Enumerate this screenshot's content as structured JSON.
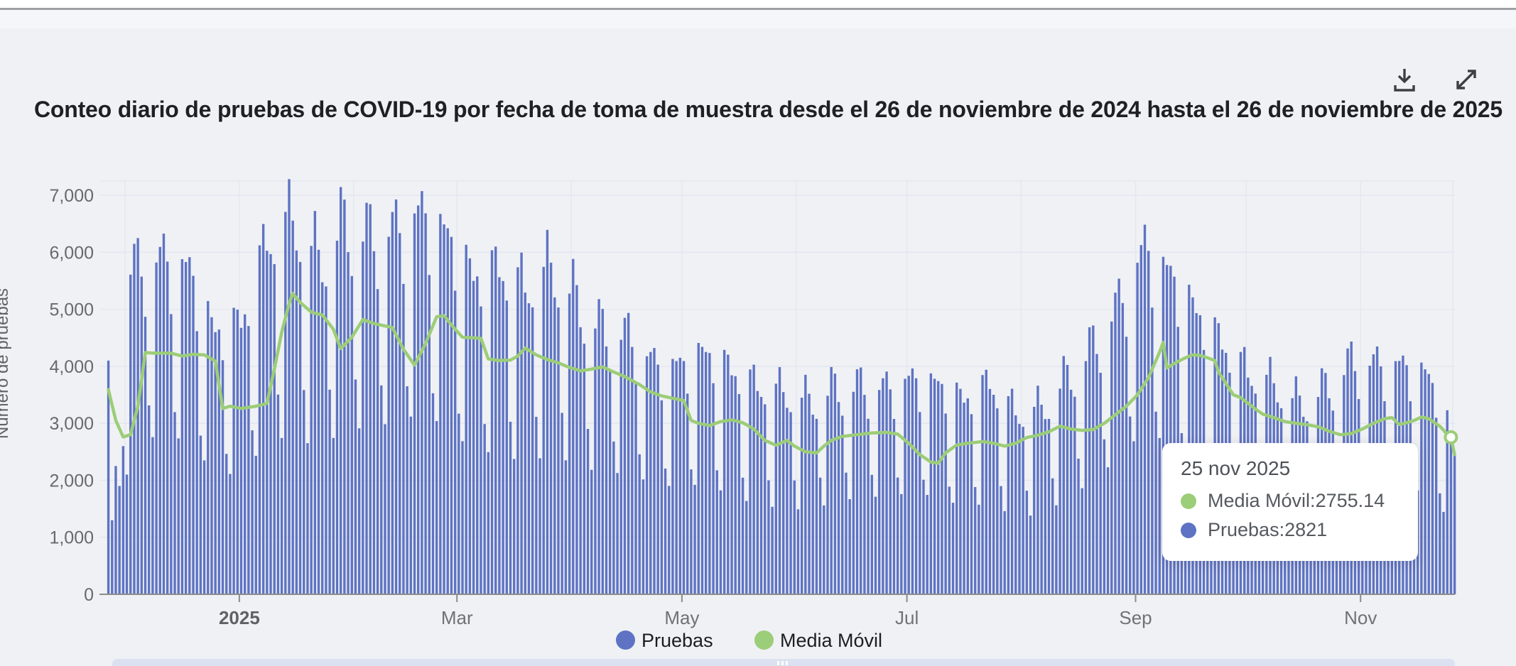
{
  "page": {
    "background": "#f0f1f4",
    "top_divider_color": "#9da1a6"
  },
  "header": {
    "title": "Conteo diario de pruebas de COVID-19 por fecha de toma de muestra desde el 26 de noviembre de 2024 hasta el 26 de noviembre de 2025"
  },
  "toolbar": {
    "icons": [
      "download-icon",
      "expand-icon"
    ],
    "icon_color": "#3c4043"
  },
  "legend": {
    "items": [
      {
        "label": "Pruebas",
        "color": "#5e73c3"
      },
      {
        "label": "Media Móvil",
        "color": "#9ccd78"
      }
    ],
    "position": "bottom-center"
  },
  "tooltip": {
    "date": "25 nov 2025",
    "separator": ": ",
    "rows": [
      {
        "label": "Media Móvil",
        "value": "2755.14",
        "color": "#9ccd78"
      },
      {
        "label": "Pruebas",
        "value": "2821",
        "color": "#5e73c3"
      }
    ]
  },
  "chart_data": {
    "type": "bar",
    "title": "Conteo diario de pruebas de COVID-19 por fecha de toma de muestra desde el 26 de noviembre de 2024 hasta el 26 de noviembre de 2025",
    "xlabel": "",
    "ylabel": "Número de pruebas",
    "x_start_date": "2024-11-26",
    "x_end_date": "2025-11-26",
    "x_total_days": 365,
    "ylim": [
      0,
      7250
    ],
    "grid": true,
    "grid_color": "#e3e7f1",
    "axis_line_color": "#8c8c8c",
    "tick_text_color": "#666a6e",
    "background": "#f0f1f4",
    "y_ticks": [
      {
        "value": 0,
        "label": "0"
      },
      {
        "value": 1000,
        "label": "1,000"
      },
      {
        "value": 2000,
        "label": "2,000"
      },
      {
        "value": 3000,
        "label": "3,000"
      },
      {
        "value": 4000,
        "label": "4,000"
      },
      {
        "value": 5000,
        "label": "5,000"
      },
      {
        "value": 6000,
        "label": "6,000"
      },
      {
        "value": 7000,
        "label": "7,000"
      }
    ],
    "x_ticks": [
      {
        "day": 36,
        "label": "2025",
        "bold": true
      },
      {
        "day": 95,
        "label": "Mar",
        "bold": false
      },
      {
        "day": 156,
        "label": "May",
        "bold": false
      },
      {
        "day": 217,
        "label": "Jul",
        "bold": false
      },
      {
        "day": 279,
        "label": "Sep",
        "bold": false
      },
      {
        "day": 340,
        "label": "Nov",
        "bold": false
      }
    ],
    "month_grid_days": [
      5,
      36,
      67,
      95,
      126,
      156,
      187,
      217,
      248,
      279,
      309,
      340,
      365
    ],
    "series": [
      {
        "name": "Pruebas",
        "type": "bar",
        "color": "#5e73c3",
        "bar_width": 3.4,
        "weekday_profile": [
          0.95,
          1.0,
          0.96,
          0.9,
          0.82,
          0.52,
          0.42
        ],
        "start_weekday_index": 1,
        "jitter": {
          "amp": 0.05,
          "freq": 1.7,
          "phase": 0.5
        },
        "weekly_peak_anchors": [
          [
            8,
            6200
          ],
          [
            15,
            6350
          ],
          [
            22,
            6100
          ],
          [
            29,
            4900
          ],
          [
            36,
            5100
          ],
          [
            43,
            6600
          ],
          [
            50,
            7050
          ],
          [
            57,
            6300
          ],
          [
            64,
            7000
          ],
          [
            71,
            6800
          ],
          [
            78,
            6900
          ],
          [
            85,
            7200
          ],
          [
            92,
            6750
          ],
          [
            99,
            5950
          ],
          [
            106,
            6100
          ],
          [
            113,
            5750
          ],
          [
            120,
            6150
          ],
          [
            127,
            5550
          ],
          [
            134,
            5000
          ],
          [
            141,
            4900
          ],
          [
            148,
            4350
          ],
          [
            155,
            4300
          ],
          [
            162,
            4550
          ],
          [
            169,
            4200
          ],
          [
            176,
            3900
          ],
          [
            183,
            3800
          ],
          [
            190,
            3650
          ],
          [
            197,
            3900
          ],
          [
            204,
            3950
          ],
          [
            211,
            3900
          ],
          [
            218,
            4050
          ],
          [
            225,
            3950
          ],
          [
            232,
            3650
          ],
          [
            239,
            3950
          ],
          [
            246,
            3400
          ],
          [
            253,
            3500
          ],
          [
            260,
            4100
          ],
          [
            267,
            4700
          ],
          [
            274,
            5500
          ],
          [
            281,
            6550
          ],
          [
            288,
            6000
          ],
          [
            295,
            5300
          ],
          [
            302,
            4700
          ],
          [
            309,
            4150
          ],
          [
            316,
            3950
          ],
          [
            323,
            3600
          ],
          [
            330,
            3900
          ],
          [
            337,
            4400
          ],
          [
            344,
            4350
          ],
          [
            351,
            4300
          ],
          [
            358,
            4100
          ],
          [
            365,
            2900
          ]
        ],
        "overrides": {
          "0": 4100,
          "1": 1300,
          "2": 2250,
          "3": 1900,
          "4": 2600,
          "5": 2100,
          "364": 2821,
          "365": 2450
        },
        "highlighted_day_value": {
          "date": "25 nov 2025",
          "value": 2821
        }
      },
      {
        "name": "Media Móvil",
        "type": "line",
        "color": "#9ccd78",
        "line_width": 4.5,
        "end_marker_day": 364,
        "end_marker_value": 2755.14,
        "anchors": [
          [
            0,
            3590
          ],
          [
            2,
            3050
          ],
          [
            4,
            2760
          ],
          [
            6,
            2800
          ],
          [
            8,
            3300
          ],
          [
            10,
            4240
          ],
          [
            13,
            4230
          ],
          [
            17,
            4230
          ],
          [
            20,
            4180
          ],
          [
            23,
            4210
          ],
          [
            26,
            4200
          ],
          [
            29,
            4090
          ],
          [
            31,
            3260
          ],
          [
            33,
            3300
          ],
          [
            36,
            3260
          ],
          [
            40,
            3300
          ],
          [
            43,
            3350
          ],
          [
            45,
            3950
          ],
          [
            47,
            4600
          ],
          [
            49,
            5100
          ],
          [
            50,
            5280
          ],
          [
            52,
            5120
          ],
          [
            55,
            4950
          ],
          [
            58,
            4900
          ],
          [
            61,
            4650
          ],
          [
            63,
            4310
          ],
          [
            66,
            4510
          ],
          [
            69,
            4820
          ],
          [
            72,
            4750
          ],
          [
            77,
            4680
          ],
          [
            80,
            4300
          ],
          [
            83,
            4020
          ],
          [
            86,
            4400
          ],
          [
            89,
            4870
          ],
          [
            91,
            4890
          ],
          [
            94,
            4650
          ],
          [
            96,
            4510
          ],
          [
            99,
            4500
          ],
          [
            101,
            4490
          ],
          [
            103,
            4130
          ],
          [
            106,
            4100
          ],
          [
            109,
            4110
          ],
          [
            111,
            4180
          ],
          [
            113,
            4320
          ],
          [
            116,
            4200
          ],
          [
            119,
            4120
          ],
          [
            122,
            4060
          ],
          [
            125,
            3980
          ],
          [
            128,
            3920
          ],
          [
            131,
            3950
          ],
          [
            134,
            3990
          ],
          [
            137,
            3900
          ],
          [
            140,
            3820
          ],
          [
            144,
            3680
          ],
          [
            147,
            3550
          ],
          [
            150,
            3480
          ],
          [
            153,
            3440
          ],
          [
            156,
            3400
          ],
          [
            158,
            3050
          ],
          [
            160,
            3000
          ],
          [
            163,
            2960
          ],
          [
            166,
            3030
          ],
          [
            169,
            3060
          ],
          [
            172,
            3010
          ],
          [
            175,
            2900
          ],
          [
            178,
            2700
          ],
          [
            181,
            2615
          ],
          [
            184,
            2700
          ],
          [
            186,
            2600
          ],
          [
            189,
            2500
          ],
          [
            192,
            2480
          ],
          [
            194,
            2600
          ],
          [
            196,
            2700
          ],
          [
            199,
            2770
          ],
          [
            203,
            2800
          ],
          [
            207,
            2830
          ],
          [
            211,
            2840
          ],
          [
            214,
            2810
          ],
          [
            217,
            2650
          ],
          [
            220,
            2450
          ],
          [
            223,
            2320
          ],
          [
            225,
            2300
          ],
          [
            227,
            2480
          ],
          [
            230,
            2620
          ],
          [
            233,
            2650
          ],
          [
            237,
            2680
          ],
          [
            240,
            2650
          ],
          [
            243,
            2600
          ],
          [
            246,
            2650
          ],
          [
            249,
            2750
          ],
          [
            252,
            2790
          ],
          [
            255,
            2850
          ],
          [
            258,
            2950
          ],
          [
            261,
            2900
          ],
          [
            264,
            2875
          ],
          [
            267,
            2890
          ],
          [
            270,
            3000
          ],
          [
            273,
            3150
          ],
          [
            276,
            3300
          ],
          [
            279,
            3500
          ],
          [
            282,
            3800
          ],
          [
            284,
            4100
          ],
          [
            285,
            4250
          ],
          [
            286,
            4420
          ],
          [
            287,
            3970
          ],
          [
            289,
            4050
          ],
          [
            292,
            4150
          ],
          [
            294,
            4200
          ],
          [
            296,
            4190
          ],
          [
            298,
            4150
          ],
          [
            300,
            4100
          ],
          [
            301,
            3900
          ],
          [
            303,
            3700
          ],
          [
            305,
            3500
          ],
          [
            307,
            3450
          ],
          [
            309,
            3350
          ],
          [
            311,
            3250
          ],
          [
            313,
            3160
          ],
          [
            316,
            3100
          ],
          [
            319,
            3030
          ],
          [
            322,
            3000
          ],
          [
            325,
            2975
          ],
          [
            328,
            2940
          ],
          [
            331,
            2860
          ],
          [
            334,
            2800
          ],
          [
            337,
            2820
          ],
          [
            340,
            2900
          ],
          [
            343,
            3000
          ],
          [
            346,
            3080
          ],
          [
            348,
            3100
          ],
          [
            350,
            2980
          ],
          [
            352,
            3010
          ],
          [
            354,
            3050
          ],
          [
            356,
            3110
          ],
          [
            358,
            3080
          ],
          [
            360,
            2990
          ],
          [
            361,
            2950
          ],
          [
            362,
            2880
          ],
          [
            363,
            2800
          ],
          [
            364,
            2755
          ],
          [
            365,
            2450
          ]
        ]
      }
    ]
  },
  "slider": {
    "color": "#dbe1f0",
    "grip_color": "#ffffff"
  }
}
